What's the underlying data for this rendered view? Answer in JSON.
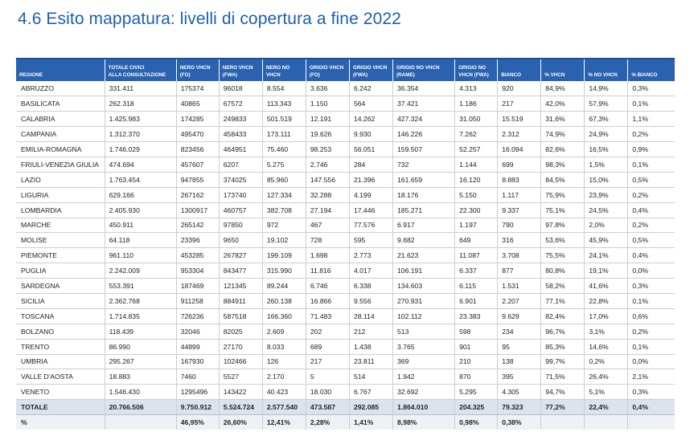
{
  "title": "4.6 Esito mappatura: livelli di copertura a fine 2022",
  "table": {
    "headers": [
      [
        "REGIONE"
      ],
      [
        "TOTALE CIVICI",
        "ALLA CONSULTAZIONE"
      ],
      [
        "NERO VHCN",
        "(FO)"
      ],
      [
        "NERO VHCN",
        "(FWA)"
      ],
      [
        "NERO NO",
        "VHCN"
      ],
      [
        "GRIGIO VHCN",
        "(FO)"
      ],
      [
        "GRIGIO VHCN",
        "(FWA)"
      ],
      [
        "GRIGIO NO VHCN",
        "(RAME)"
      ],
      [
        "GRIGIO NO",
        "VHCN (FWA)"
      ],
      [
        "BIANCO"
      ],
      [
        "% VHCN"
      ],
      [
        "% NO VHCN"
      ],
      [
        "% BIANCO"
      ]
    ],
    "rows": [
      [
        " ABRUZZO",
        "331.411",
        "175374",
        "96018",
        "8.554",
        "3.636",
        "6.242",
        "36.354",
        "4.313",
        "920",
        "84,9%",
        "14,9%",
        "0,3%"
      ],
      [
        "BASILICATA",
        "262.318",
        "40865",
        "67572",
        "113.343",
        "1.150",
        "564",
        "37.421",
        "1.186",
        "217",
        "42,0%",
        "57,9%",
        "0,1%"
      ],
      [
        "CALABRIA",
        "1.425.983",
        "174285",
        "249833",
        "501.519",
        "12.191",
        "14.262",
        "427.324",
        "31.050",
        "15.519",
        "31,6%",
        "67,3%",
        "1,1%"
      ],
      [
        "CAMPANIA",
        "1.312.370",
        "495470",
        "458433",
        "173.111",
        "19.626",
        "9.930",
        "146.226",
        "7.262",
        "2.312",
        "74,9%",
        "24,9%",
        "0,2%"
      ],
      [
        "EMILIA-ROMAGNA",
        "1.746.029",
        "823456",
        "464951",
        "75.460",
        "98.253",
        "56.051",
        "159.507",
        "52.257",
        "16.094",
        "82,6%",
        "16,5%",
        "0,9%"
      ],
      [
        "FRIULI-VENEZIA GIULIA",
        "474.694",
        "457607",
        "6207",
        "5.275",
        "2.746",
        "284",
        "732",
        "1.144",
        "699",
        "98,3%",
        "1,5%",
        "0,1%"
      ],
      [
        "LAZIO",
        "1.763.454",
        "947855",
        "374025",
        "85.960",
        "147.556",
        "21.396",
        "161.659",
        "16.120",
        "8.883",
        "84,5%",
        "15,0%",
        "0,5%"
      ],
      [
        "LIGURIA",
        "629.166",
        "267162",
        "173740",
        "127.334",
        "32.288",
        "4.199",
        "18.176",
        "5.150",
        "1.117",
        "75,9%",
        "23,9%",
        "0,2%"
      ],
      [
        "LOMBARDIA",
        "2.405.930",
        "1300917",
        "460757",
        "382.708",
        "27.194",
        "17.446",
        "185.271",
        "22.300",
        "9.337",
        "75,1%",
        "24,5%",
        "0,4%"
      ],
      [
        "MARCHE",
        "450.911",
        "265142",
        "97850",
        "972",
        "467",
        "77.576",
        "6.917",
        "1.197",
        "790",
        "97,8%",
        "2,0%",
        "0,2%"
      ],
      [
        "MOLISE",
        "64.118",
        "23396",
        "9650",
        "19.102",
        "728",
        "595",
        "9.682",
        "649",
        "316",
        "53,6%",
        "45,9%",
        "0,5%"
      ],
      [
        "PIEMONTE",
        "961.110",
        "453285",
        "267827",
        "199.109",
        "1.698",
        "2.773",
        "21.623",
        "11.087",
        "3.708",
        "75,5%",
        "24,1%",
        "0,4%"
      ],
      [
        "PUGLIA",
        "2.242.009",
        "953304",
        "843477",
        "315.990",
        "11.816",
        "4.017",
        "106.191",
        "6.337",
        "877",
        "80,8%",
        "19,1%",
        "0,0%"
      ],
      [
        "SARDEGNA",
        "553.391",
        "187469",
        "121345",
        "89.244",
        "6.746",
        "6.338",
        "134.603",
        "6.115",
        "1.531",
        "58,2%",
        "41,6%",
        "0,3%"
      ],
      [
        "SICILIA",
        "2.362.768",
        "911258",
        "884911",
        "260.138",
        "16.866",
        "9.556",
        "270.931",
        "6.901",
        "2.207",
        "77,1%",
        "22,8%",
        "0,1%"
      ],
      [
        "TOSCANA",
        "1.714.835",
        "726236",
        "587518",
        "166.360",
        "71.483",
        "28.114",
        "102.112",
        "23.383",
        "9.629",
        "82,4%",
        "17,0%",
        "0,6%"
      ],
      [
        "BOLZANO",
        "118.439",
        "32046",
        "82025",
        "2.609",
        "202",
        "212",
        "513",
        "598",
        "234",
        "96,7%",
        "3,1%",
        "0,2%"
      ],
      [
        "TRENTO",
        "86.990",
        "44899",
        "27170",
        "8.033",
        "689",
        "1.438",
        "3.765",
        "901",
        "95",
        "85,3%",
        "14,6%",
        "0,1%"
      ],
      [
        "UMBRIA",
        "295.267",
        "167930",
        "102466",
        "126",
        "217",
        "23.811",
        "369",
        "210",
        "138",
        "99,7%",
        "0,2%",
        "0,0%"
      ],
      [
        "VALLE D'AOSTA",
        "18.883",
        "7460",
        "5527",
        "2.170",
        "5",
        "514",
        "1.942",
        "870",
        "395",
        "71,5%",
        "26,4%",
        "2,1%"
      ],
      [
        "VENETO",
        "1.546.430",
        "1295496",
        "143422",
        "40.423",
        "18.030",
        "6.767",
        "32.692",
        "5.295",
        "4.305",
        "94,7%",
        "5,1%",
        "0,3%"
      ]
    ],
    "total_row": [
      "TOTALE",
      "20.766.506",
      "9.750.912",
      "5.524.724",
      "2.577.540",
      "473.587",
      "292.085",
      "1.864.010",
      "204.325",
      "79.323",
      "77,2%",
      "22,4%",
      "0,4%"
    ],
    "percent_row": [
      "%",
      "",
      "46,95%",
      "26,60%",
      "12,41%",
      "2,28%",
      "1,41%",
      "8,98%",
      "0,98%",
      "0,38%",
      "",
      "",
      ""
    ]
  }
}
